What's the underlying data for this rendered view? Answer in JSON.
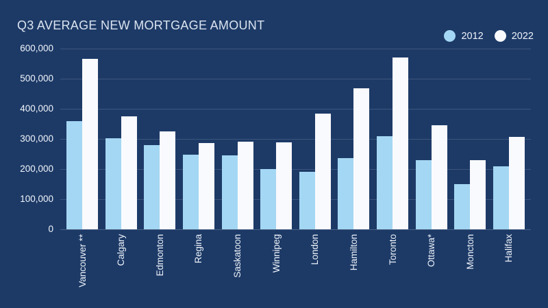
{
  "title": "Q3 AVERAGE NEW MORTGAGE AMOUNT",
  "colors": {
    "background": "#1d3a67",
    "series_2012": "#a4d7f3",
    "series_2022": "#f9fafe",
    "grid": "rgba(255,255,255,0.14)",
    "text": "#eef3fa",
    "title_text": "#dbe4f0"
  },
  "chart_data": {
    "type": "bar",
    "title": "Q3 AVERAGE NEW MORTGAGE AMOUNT",
    "categories": [
      "Vancouver **",
      "Calgary",
      "Edmonton",
      "Regina",
      "Saskatoon",
      "Winnipeg",
      "London",
      "Hamilton",
      "Toronto",
      "Ottawa*",
      "Moncton",
      "Halifax"
    ],
    "series": [
      {
        "name": "2012",
        "color": "#a4d7f3",
        "values": [
          360000,
          303000,
          280000,
          247000,
          245000,
          200000,
          192000,
          237000,
          308000,
          230000,
          150000,
          210000
        ]
      },
      {
        "name": "2022",
        "color": "#f9fafe",
        "values": [
          565000,
          375000,
          325000,
          286000,
          291000,
          288000,
          383000,
          469000,
          570000,
          346000,
          230000,
          306000
        ]
      }
    ],
    "xlabel": "",
    "ylabel": "",
    "ylim": [
      0,
      600000
    ],
    "ytick_values": [
      600000,
      500000,
      400000,
      300000,
      200000,
      100000,
      0
    ],
    "ytick_labels": [
      "600,000",
      "500,000",
      "400,000",
      "300,000",
      "200,000",
      "100,000",
      "0"
    ],
    "grid": true,
    "legend_position": "top-right"
  }
}
